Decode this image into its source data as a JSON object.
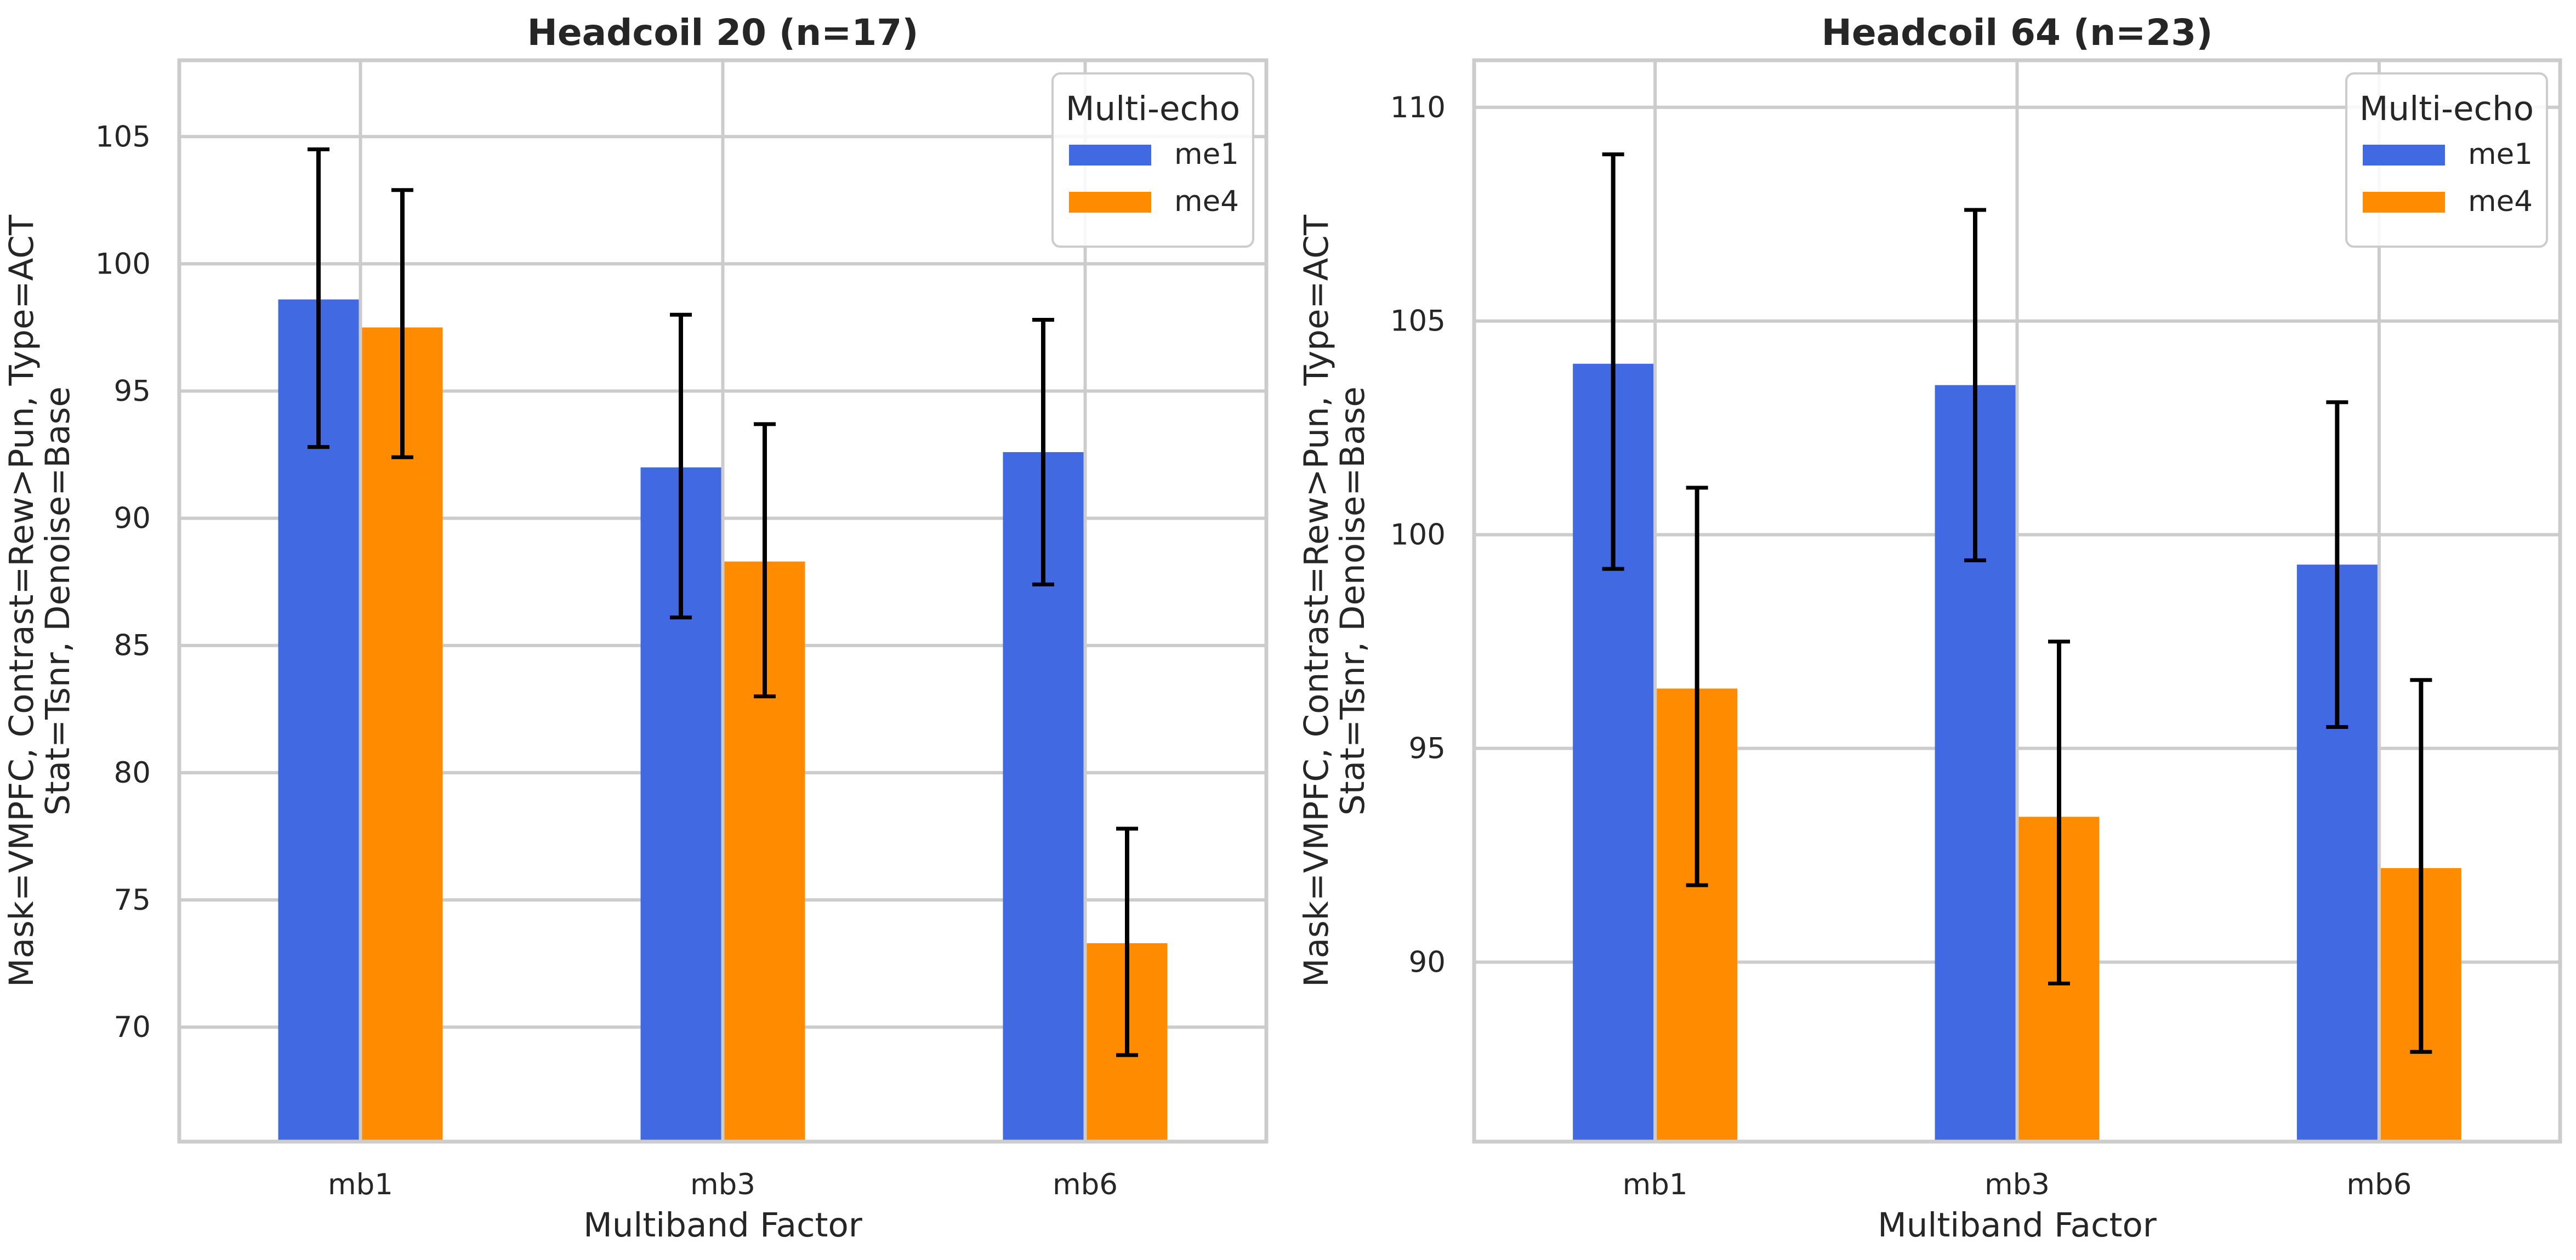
{
  "chart_data": [
    {
      "type": "bar",
      "title": "Headcoil 20 (n=17)",
      "xlabel": "Multiband Factor",
      "ylabel_lines": [
        "Mask=VMPFC, Contrast=Rew>Pun, Type=ACT",
        "Stat=Tsnr, Denoise=Base"
      ],
      "categories": [
        "mb1",
        "mb3",
        "mb6"
      ],
      "ylim": [
        65.5,
        108
      ],
      "yticks": [
        70,
        75,
        80,
        85,
        90,
        95,
        100,
        105
      ],
      "grid": true,
      "legend": {
        "title": "Multi-echo",
        "placement": "top-right"
      },
      "series": [
        {
          "name": "me1",
          "color": "#4169e1",
          "values": [
            98.6,
            92.0,
            92.6
          ],
          "error_low": [
            92.8,
            86.1,
            87.4
          ],
          "error_high": [
            104.5,
            98.0,
            97.8
          ]
        },
        {
          "name": "me4",
          "color": "#ff8c00",
          "values": [
            97.5,
            88.3,
            73.3
          ],
          "error_low": [
            92.4,
            83.0,
            68.9
          ],
          "error_high": [
            102.9,
            93.7,
            77.8
          ]
        }
      ]
    },
    {
      "type": "bar",
      "title": "Headcoil 64 (n=23)",
      "xlabel": "Multiband Factor",
      "ylabel_lines": [
        "Mask=VMPFC, Contrast=Rew>Pun, Type=ACT",
        "Stat=Tsnr, Denoise=Base"
      ],
      "categories": [
        "mb1",
        "mb3",
        "mb6"
      ],
      "ylim": [
        85.8,
        111.1
      ],
      "yticks": [
        90,
        95,
        100,
        105,
        110
      ],
      "grid": true,
      "legend": {
        "title": "Multi-echo",
        "placement": "top-right"
      },
      "series": [
        {
          "name": "me1",
          "color": "#4169e1",
          "values": [
            104.0,
            103.5,
            99.3
          ],
          "error_low": [
            99.2,
            99.4,
            95.5
          ],
          "error_high": [
            108.9,
            107.6,
            103.1
          ]
        },
        {
          "name": "me4",
          "color": "#ff8c00",
          "values": [
            96.4,
            93.4,
            92.2
          ],
          "error_low": [
            91.8,
            89.5,
            87.9
          ],
          "error_high": [
            101.1,
            97.5,
            96.6
          ]
        }
      ]
    }
  ]
}
